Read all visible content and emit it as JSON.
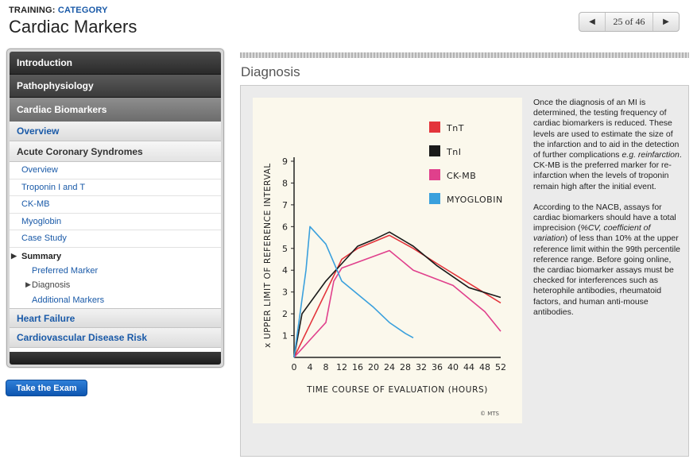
{
  "breadcrumb": {
    "training": "TRAINING:",
    "category": "CATEGORY"
  },
  "page_title": "Cardiac Markers",
  "pager": {
    "prev_icon": "triangle-left",
    "count": "25 of 46",
    "next_icon": "triangle-right"
  },
  "sidebar": {
    "sections": [
      "Introduction",
      "Pathophysiology",
      "Cardiac Biomarkers"
    ],
    "overview": "Overview",
    "acs": "Acute Coronary Syndromes",
    "items": [
      "Overview",
      "Troponin I and T",
      "CK-MB",
      "Myoglobin",
      "Case Study"
    ],
    "summary": "Summary",
    "summary_items": [
      "Preferred Marker",
      "Diagnosis",
      "Additional Markers"
    ],
    "bottom_sections": [
      "Heart Failure",
      "Cardiovascular Disease Risk"
    ]
  },
  "exam_button": "Take the Exam",
  "section_title": "Diagnosis",
  "description": {
    "p1_a": "Once the diagnosis of an MI is determined, the testing frequency of cardiac biomarkers is reduced. These levels are used to estimate the size of the infarction and to aid in the detection of further complications ",
    "p1_italic": "e.g. reinfarction",
    "p1_b": ". CK-MB is the preferred marker for re-infarction when the levels of troponin remain high after the initial event.",
    "p2_a": "According to the NACB, assays for cardiac biomarkers should have a total imprecision (",
    "p2_italic": "%CV, coefficient of variation",
    "p2_b": ") of less than 10% at the upper reference limit within the 99th percentile reference range. Before going online, the cardiac biomarker assays must be checked for interferences such as heterophile antibodies, rheumatoid factors, and human anti-mouse antibodies."
  },
  "chart_data": {
    "type": "line",
    "xlabel": "TIME COURSE OF EVALUATION (HOURS)",
    "ylabel": "x UPPER LIMIT OF REFERENCE INTERVAL",
    "xlim": [
      0,
      52
    ],
    "ylim": [
      0,
      9
    ],
    "xticks": [
      0,
      4,
      8,
      12,
      16,
      20,
      24,
      28,
      32,
      36,
      40,
      44,
      48,
      52
    ],
    "yticks": [
      1,
      2,
      3,
      4,
      5,
      6,
      7,
      8,
      9
    ],
    "legend_position": "top-right",
    "credit": "© MTS",
    "series": [
      {
        "name": "TnT",
        "color": "#e3343b",
        "points": [
          [
            0,
            0
          ],
          [
            4,
            1.5
          ],
          [
            8,
            3
          ],
          [
            12,
            4.5
          ],
          [
            16,
            5
          ],
          [
            20,
            5.3
          ],
          [
            24,
            5.6
          ],
          [
            30,
            5
          ],
          [
            36,
            4.3
          ],
          [
            44,
            3.4
          ],
          [
            52,
            2.5
          ]
        ]
      },
      {
        "name": "TnI",
        "color": "#1a1a1a",
        "points": [
          [
            0,
            0
          ],
          [
            2,
            2
          ],
          [
            8,
            3.5
          ],
          [
            12,
            4.3
          ],
          [
            16,
            5.1
          ],
          [
            20,
            5.4
          ],
          [
            24,
            5.75
          ],
          [
            30,
            5.1
          ],
          [
            36,
            4.2
          ],
          [
            44,
            3.2
          ],
          [
            52,
            2.75
          ]
        ]
      },
      {
        "name": "CK-MB",
        "color": "#e0408c",
        "points": [
          [
            0,
            0
          ],
          [
            4,
            0.8
          ],
          [
            8,
            1.6
          ],
          [
            10,
            3.5
          ],
          [
            12,
            4.1
          ],
          [
            18,
            4.5
          ],
          [
            24,
            4.9
          ],
          [
            30,
            4
          ],
          [
            40,
            3.3
          ],
          [
            48,
            2.1
          ],
          [
            52,
            1.2
          ]
        ]
      },
      {
        "name": "MYOGLOBIN",
        "color": "#3aa0dd",
        "points": [
          [
            0,
            0
          ],
          [
            3,
            4
          ],
          [
            4,
            6
          ],
          [
            8,
            5.2
          ],
          [
            12,
            3.5
          ],
          [
            16,
            2.9
          ],
          [
            20,
            2.3
          ],
          [
            24,
            1.6
          ],
          [
            28,
            1.1
          ],
          [
            30,
            0.9
          ]
        ]
      }
    ]
  }
}
